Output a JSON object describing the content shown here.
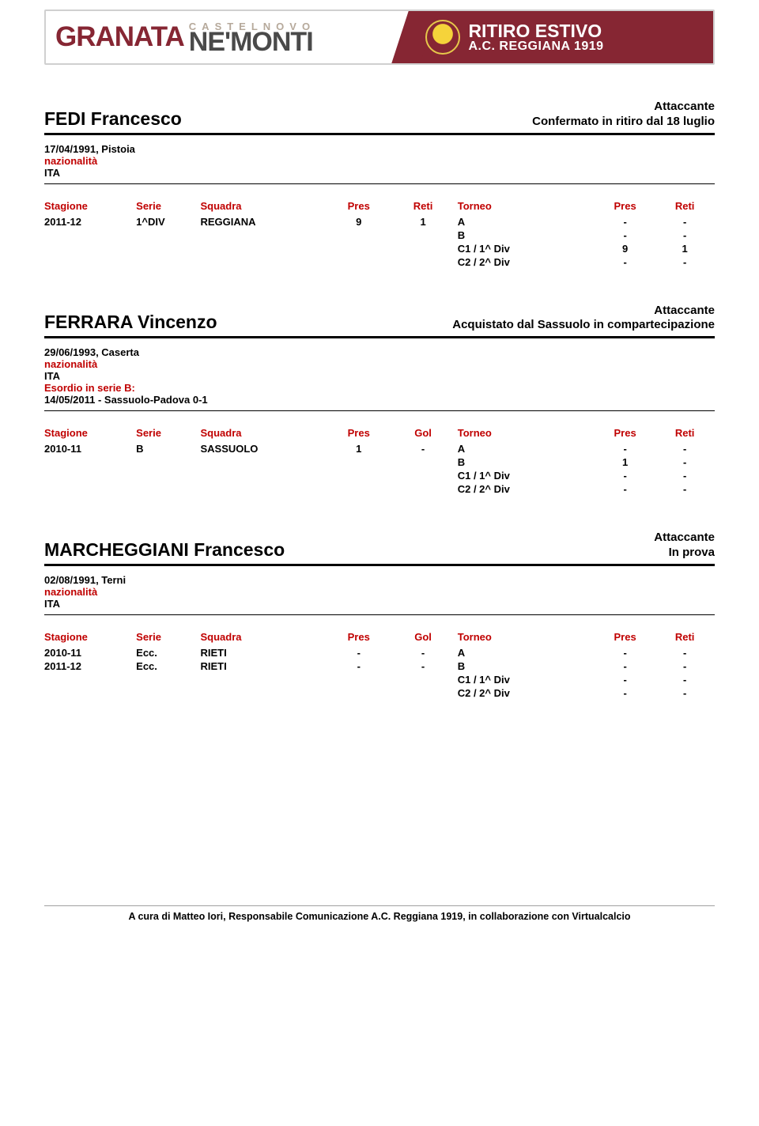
{
  "banner": {
    "granata": "GRANATA",
    "castelnovo": "CASTELNOVO",
    "nemonti": "NE'MONTI",
    "ritiro": "RITIRO ESTIVO",
    "ac": "A.C. REGGIANA 1919",
    "colors": {
      "maroon": "#862633",
      "grey": "#4a4a4a",
      "tan": "#b6a99b"
    }
  },
  "players": [
    {
      "name": "FEDI Francesco",
      "role": "Attaccante",
      "status": "Confermato in ritiro dal 18 luglio",
      "bio": {
        "birth": "17/04/1991, Pistoia",
        "nazionalita_label": "nazionalità",
        "nazionalita": "ITA"
      },
      "table": {
        "headers": [
          "Stagione",
          "Serie",
          "Squadra",
          "Pres",
          "Reti",
          "Torneo",
          "Pres",
          "Reti"
        ],
        "left_rows": [
          {
            "stag": "2011-12",
            "serie": "1^DIV",
            "squadra": "REGGIANA",
            "pres": "9",
            "gol": "1"
          }
        ],
        "right_rows": [
          {
            "torneo": "A",
            "pres": "-",
            "reti": "-"
          },
          {
            "torneo": "B",
            "pres": "-",
            "reti": "-"
          },
          {
            "torneo": "C1 / 1^ Div",
            "pres": "9",
            "reti": "1"
          },
          {
            "torneo": "C2 / 2^ Div",
            "pres": "-",
            "reti": "-"
          }
        ]
      }
    },
    {
      "name": "FERRARA Vincenzo",
      "role": "Attaccante",
      "status": "Acquistato dal Sassuolo in compartecipazione",
      "bio": {
        "birth": "29/06/1993, Caserta",
        "nazionalita_label": "nazionalità",
        "nazionalita": "ITA",
        "esordio_label": "Esordio in serie B:",
        "esordio": "14/05/2011 - Sassuolo-Padova 0-1"
      },
      "table": {
        "headers": [
          "Stagione",
          "Serie",
          "Squadra",
          "Pres",
          "Gol",
          "Torneo",
          "Pres",
          "Reti"
        ],
        "left_rows": [
          {
            "stag": "2010-11",
            "serie": "B",
            "squadra": "SASSUOLO",
            "pres": "1",
            "gol": "-"
          }
        ],
        "right_rows": [
          {
            "torneo": "A",
            "pres": "-",
            "reti": "-"
          },
          {
            "torneo": "B",
            "pres": "1",
            "reti": "-"
          },
          {
            "torneo": "C1 / 1^ Div",
            "pres": "-",
            "reti": "-"
          },
          {
            "torneo": "C2 / 2^ Div",
            "pres": "-",
            "reti": "-"
          }
        ]
      }
    },
    {
      "name": "MARCHEGGIANI Francesco",
      "role": "Attaccante",
      "status": "In prova",
      "bio": {
        "birth": "02/08/1991, Terni",
        "nazionalita_label": "nazionalità",
        "nazionalita": "ITA"
      },
      "table": {
        "headers": [
          "Stagione",
          "Serie",
          "Squadra",
          "Pres",
          "Gol",
          "Torneo",
          "Pres",
          "Reti"
        ],
        "left_rows": [
          {
            "stag": "2010-11",
            "serie": "Ecc.",
            "squadra": "RIETI",
            "pres": "-",
            "gol": "-"
          },
          {
            "stag": "2011-12",
            "serie": "Ecc.",
            "squadra": "RIETI",
            "pres": "-",
            "gol": "-"
          }
        ],
        "right_rows": [
          {
            "torneo": "A",
            "pres": "-",
            "reti": "-"
          },
          {
            "torneo": "B",
            "pres": "-",
            "reti": "-"
          },
          {
            "torneo": "C1 / 1^ Div",
            "pres": "-",
            "reti": "-"
          },
          {
            "torneo": "C2 / 2^ Div",
            "pres": "-",
            "reti": "-"
          }
        ]
      }
    }
  ],
  "footer": "A cura di Matteo Iori, Responsabile Comunicazione A.C. Reggiana 1919, in collaborazione con Virtualcalcio"
}
